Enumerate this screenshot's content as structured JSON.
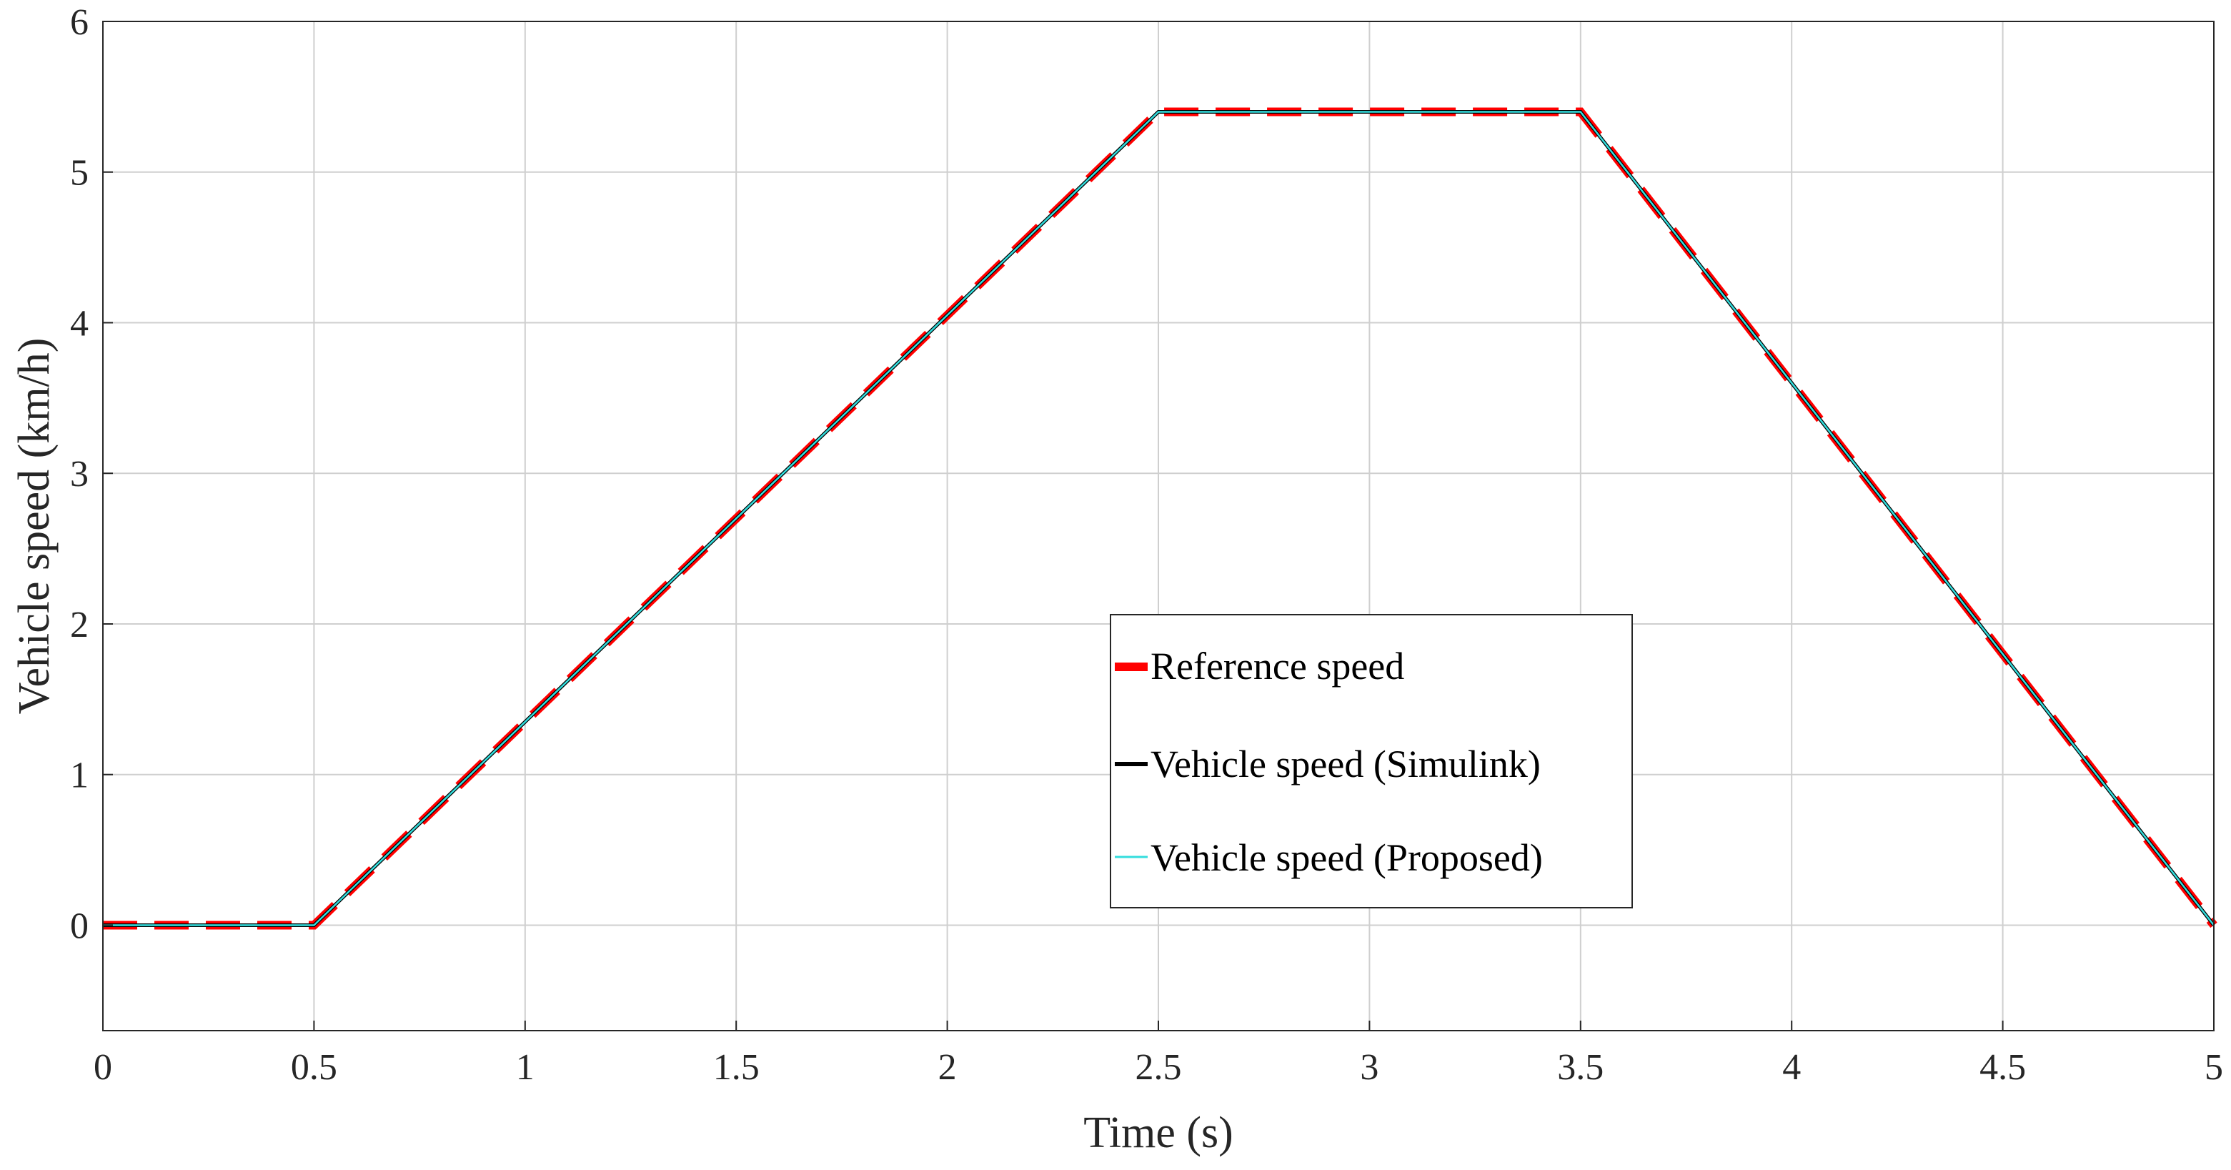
{
  "chart_data": {
    "type": "line",
    "title": "",
    "xlabel": "Time (s)",
    "ylabel": "Vehicle speed (km/h)",
    "xlim": [
      0,
      5
    ],
    "ylim": [
      -0.7,
      6
    ],
    "xticks": [
      0,
      0.5,
      1,
      1.5,
      2,
      2.5,
      3,
      3.5,
      4,
      4.5,
      5
    ],
    "xtick_labels": [
      "0",
      "0.5",
      "1",
      "1.5",
      "2",
      "2.5",
      "3",
      "3.5",
      "4",
      "4.5",
      "5"
    ],
    "yticks": [
      0,
      1,
      2,
      3,
      4,
      5,
      6
    ],
    "ytick_labels": [
      "0",
      "1",
      "2",
      "3",
      "4",
      "5",
      "6"
    ],
    "grid": true,
    "legend_position": "center-right",
    "series": [
      {
        "name": "Reference speed",
        "color": "#ff0000",
        "style": "dashed",
        "x": [
          0,
          0.5,
          2.5,
          3.5,
          5
        ],
        "y": [
          0,
          0,
          5.4,
          5.4,
          0
        ]
      },
      {
        "name": "Vehicle speed (Simulink)",
        "color": "#000000",
        "style": "solid",
        "x": [
          0,
          0.5,
          2.5,
          3.5,
          5
        ],
        "y": [
          0,
          0,
          5.4,
          5.4,
          0
        ]
      },
      {
        "name": "Vehicle speed (Proposed)",
        "color": "#33dddd",
        "style": "solid",
        "x": [
          0,
          0.5,
          2.5,
          3.5,
          5
        ],
        "y": [
          0,
          0,
          5.4,
          5.4,
          0
        ]
      }
    ]
  }
}
